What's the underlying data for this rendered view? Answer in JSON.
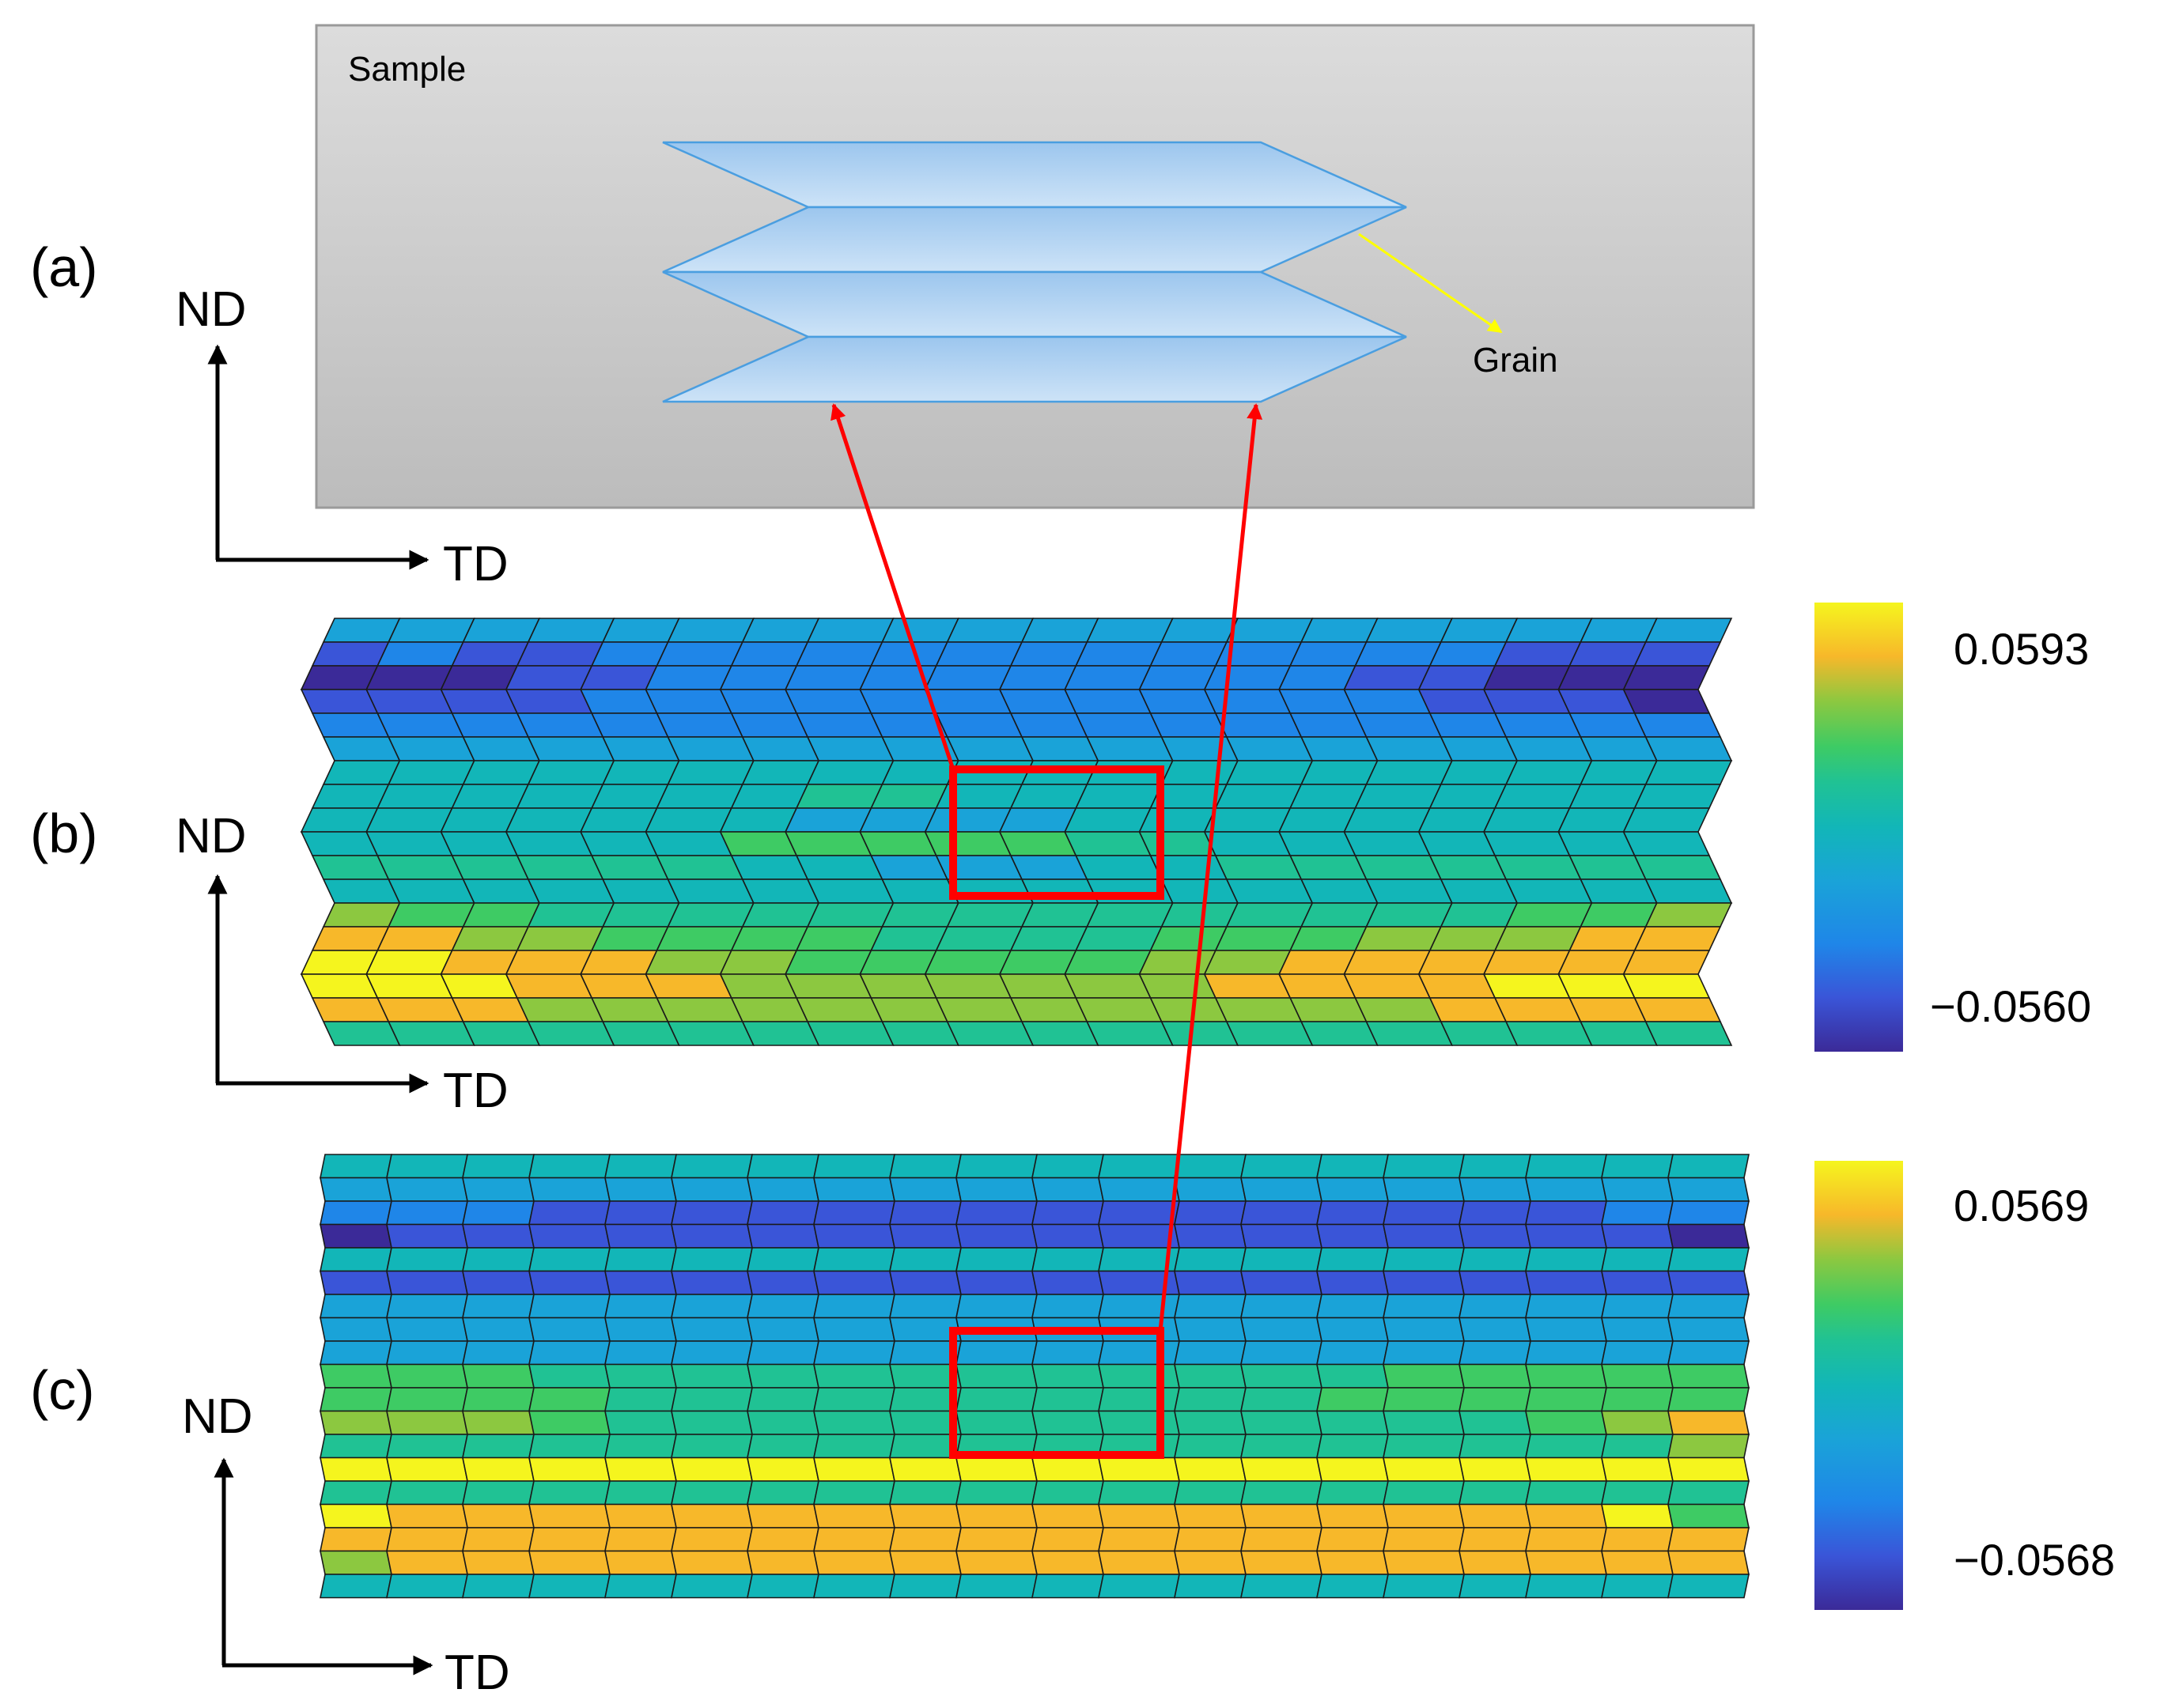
{
  "panels": {
    "a": {
      "label": "(a)",
      "sample_label": "Sample",
      "grain_label": "Grain",
      "grain_layers": 4
    },
    "b": {
      "label": "(b)",
      "colorbar_max": "0.0593",
      "colorbar_min": "−0.0560"
    },
    "c": {
      "label": "(c)",
      "colorbar_max": "0.0569",
      "colorbar_min": "−0.0568"
    }
  },
  "axes": {
    "vertical": "ND",
    "horizontal": "TD"
  },
  "mesh": {
    "columns": 20,
    "b_rows": [
      [
        3,
        3,
        3,
        3,
        3,
        3,
        3,
        3,
        3,
        3,
        3,
        3,
        3,
        3,
        3,
        3,
        3,
        3,
        3,
        3
      ],
      [
        1,
        2,
        1,
        1,
        2,
        2,
        2,
        2,
        2,
        2,
        2,
        2,
        2,
        2,
        2,
        2,
        2,
        1,
        1,
        1
      ],
      [
        0,
        0,
        0,
        1,
        1,
        2,
        2,
        2,
        2,
        2,
        2,
        2,
        2,
        2,
        2,
        1,
        1,
        0,
        0,
        0
      ],
      [
        1,
        1,
        1,
        1,
        2,
        2,
        2,
        2,
        2,
        2,
        2,
        2,
        2,
        2,
        2,
        2,
        1,
        1,
        1,
        0
      ],
      [
        2,
        2,
        2,
        2,
        2,
        2,
        2,
        2,
        2,
        2,
        2,
        2,
        2,
        2,
        2,
        2,
        2,
        2,
        2,
        2
      ],
      [
        3,
        3,
        3,
        3,
        3,
        3,
        3,
        3,
        3,
        3,
        3,
        3,
        3,
        3,
        3,
        3,
        3,
        3,
        3,
        3
      ],
      [
        4,
        4,
        4,
        4,
        4,
        4,
        4,
        4,
        4,
        4,
        4,
        4,
        4,
        4,
        4,
        4,
        4,
        4,
        4,
        4
      ],
      [
        4,
        4,
        4,
        4,
        4,
        4,
        4,
        5,
        5,
        4,
        4,
        4,
        4,
        4,
        4,
        4,
        4,
        4,
        4,
        4
      ],
      [
        4,
        4,
        4,
        4,
        4,
        4,
        4,
        3,
        3,
        3,
        3,
        4,
        4,
        4,
        4,
        4,
        4,
        4,
        4,
        4
      ],
      [
        4,
        4,
        4,
        4,
        4,
        4,
        6,
        6,
        6,
        6,
        6,
        5,
        5,
        4,
        4,
        4,
        4,
        4,
        4,
        4
      ],
      [
        5,
        5,
        5,
        5,
        5,
        5,
        4,
        4,
        3,
        3,
        3,
        4,
        4,
        5,
        5,
        5,
        5,
        5,
        5,
        5
      ],
      [
        4,
        4,
        4,
        4,
        4,
        4,
        4,
        4,
        4,
        4,
        4,
        4,
        4,
        4,
        4,
        4,
        4,
        4,
        4,
        4
      ],
      [
        7,
        6,
        6,
        5,
        5,
        5,
        5,
        5,
        5,
        5,
        5,
        5,
        5,
        5,
        5,
        5,
        5,
        6,
        6,
        7
      ],
      [
        8,
        8,
        7,
        7,
        6,
        6,
        6,
        6,
        5,
        5,
        5,
        5,
        6,
        6,
        6,
        7,
        7,
        7,
        8,
        8
      ],
      [
        9,
        9,
        8,
        8,
        8,
        7,
        7,
        6,
        6,
        6,
        6,
        6,
        7,
        7,
        8,
        8,
        8,
        8,
        8,
        8
      ],
      [
        9,
        9,
        9,
        8,
        8,
        8,
        7,
        7,
        7,
        7,
        7,
        7,
        7,
        8,
        8,
        8,
        8,
        9,
        9,
        9
      ],
      [
        8,
        8,
        8,
        7,
        7,
        7,
        7,
        7,
        7,
        7,
        7,
        7,
        7,
        7,
        7,
        7,
        8,
        8,
        8,
        8
      ],
      [
        5,
        5,
        5,
        5,
        5,
        5,
        5,
        5,
        5,
        5,
        5,
        5,
        5,
        5,
        5,
        5,
        5,
        5,
        5,
        5
      ]
    ],
    "c_rows": [
      [
        4,
        4,
        4,
        4,
        4,
        4,
        4,
        4,
        4,
        4,
        4,
        4,
        4,
        4,
        4,
        4,
        4,
        4,
        4,
        4
      ],
      [
        3,
        3,
        3,
        3,
        3,
        3,
        3,
        3,
        3,
        3,
        3,
        3,
        3,
        3,
        3,
        3,
        3,
        3,
        3,
        3
      ],
      [
        2,
        2,
        2,
        1,
        1,
        1,
        1,
        1,
        1,
        1,
        1,
        1,
        1,
        1,
        1,
        1,
        1,
        1,
        2,
        2
      ],
      [
        0,
        1,
        1,
        1,
        1,
        1,
        1,
        1,
        1,
        1,
        1,
        1,
        1,
        1,
        1,
        1,
        1,
        1,
        1,
        0
      ],
      [
        4,
        4,
        4,
        4,
        4,
        4,
        4,
        4,
        4,
        4,
        4,
        4,
        4,
        4,
        4,
        4,
        4,
        4,
        4,
        4
      ],
      [
        1,
        1,
        1,
        1,
        1,
        1,
        1,
        1,
        1,
        1,
        1,
        1,
        1,
        1,
        1,
        1,
        1,
        1,
        1,
        1
      ],
      [
        3,
        3,
        3,
        3,
        3,
        3,
        3,
        3,
        3,
        3,
        3,
        3,
        3,
        3,
        3,
        3,
        3,
        3,
        3,
        3
      ],
      [
        3,
        3,
        3,
        3,
        3,
        3,
        3,
        3,
        3,
        3,
        3,
        3,
        3,
        3,
        3,
        3,
        3,
        3,
        3,
        3
      ],
      [
        3,
        3,
        3,
        3,
        3,
        3,
        3,
        3,
        3,
        3,
        3,
        3,
        3,
        3,
        3,
        3,
        3,
        3,
        3,
        3
      ],
      [
        6,
        6,
        6,
        5,
        5,
        5,
        5,
        5,
        5,
        5,
        5,
        5,
        5,
        5,
        5,
        6,
        6,
        6,
        6,
        6
      ],
      [
        6,
        6,
        6,
        6,
        5,
        5,
        5,
        5,
        5,
        5,
        5,
        5,
        5,
        5,
        6,
        6,
        6,
        6,
        6,
        6
      ],
      [
        7,
        7,
        7,
        6,
        5,
        5,
        5,
        5,
        5,
        5,
        5,
        5,
        5,
        5,
        5,
        5,
        5,
        6,
        7,
        8
      ],
      [
        5,
        5,
        5,
        5,
        5,
        5,
        5,
        5,
        5,
        5,
        5,
        5,
        5,
        5,
        5,
        5,
        5,
        5,
        5,
        7
      ],
      [
        9,
        9,
        9,
        9,
        9,
        9,
        9,
        9,
        9,
        9,
        9,
        9,
        9,
        9,
        9,
        9,
        9,
        9,
        9,
        9
      ],
      [
        5,
        5,
        5,
        5,
        5,
        5,
        5,
        5,
        5,
        5,
        5,
        5,
        5,
        5,
        5,
        5,
        5,
        5,
        5,
        5
      ],
      [
        9,
        8,
        8,
        8,
        8,
        8,
        8,
        8,
        8,
        8,
        8,
        8,
        8,
        8,
        8,
        8,
        8,
        8,
        9,
        6
      ],
      [
        8,
        8,
        8,
        8,
        8,
        8,
        8,
        8,
        8,
        8,
        8,
        8,
        8,
        8,
        8,
        8,
        8,
        8,
        8,
        8
      ],
      [
        7,
        8,
        8,
        8,
        8,
        8,
        8,
        8,
        8,
        8,
        8,
        8,
        8,
        8,
        8,
        8,
        8,
        8,
        8,
        8
      ],
      [
        4,
        4,
        4,
        4,
        4,
        4,
        4,
        4,
        4,
        4,
        4,
        4,
        4,
        4,
        4,
        4,
        4,
        4,
        4,
        4
      ]
    ],
    "palette": [
      "#3b2a98",
      "#3a55d8",
      "#1f86e8",
      "#1aa3d8",
      "#12b6b8",
      "#20c294",
      "#3ecb64",
      "#8cc840",
      "#f7b82a",
      "#f5f51e"
    ]
  },
  "colors": {
    "highlight": "#ff0000",
    "grain_pointer": "#ffff00"
  }
}
